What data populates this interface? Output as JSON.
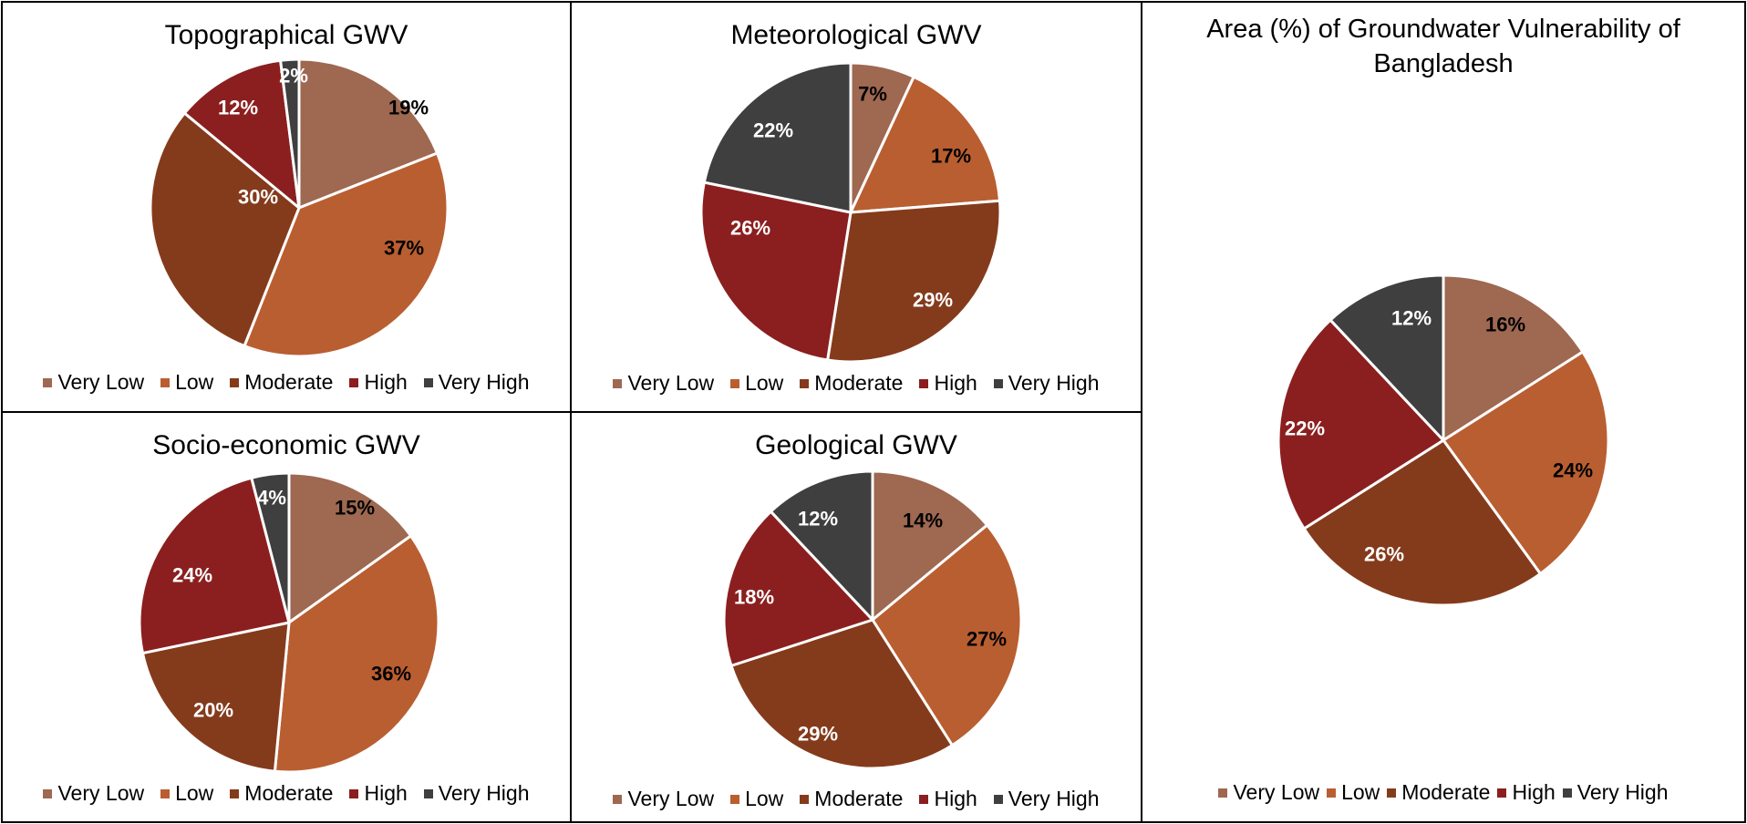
{
  "categories": [
    "Very Low",
    "Low",
    "Moderate",
    "High",
    "Very High"
  ],
  "colors": {
    "Very Low": "#9E6851",
    "Low": "#B95E31",
    "Moderate": "#843B1C",
    "High": "#8B1F1F",
    "Very High": "#3F3F3F"
  },
  "panels": {
    "topographical": {
      "title": "Topographical GWV",
      "labels": [
        "19%",
        "37%",
        "30%",
        "12%",
        "2%"
      ]
    },
    "meteorological": {
      "title": "Meteorological GWV",
      "labels": [
        "7%",
        "17%",
        "29%",
        "26%",
        "22%"
      ]
    },
    "socioeconomic": {
      "title": "Socio-economic GWV",
      "labels": [
        "15%",
        "36%",
        "20%",
        "24%",
        "4%"
      ]
    },
    "geological": {
      "title": "Geological GWV",
      "labels": [
        "14%",
        "27%",
        "29%",
        "18%",
        "12%"
      ]
    },
    "overall": {
      "title": "Area (%) of Groundwater Vulnerability of Bangladesh",
      "labels": [
        "16%",
        "24%",
        "26%",
        "22%",
        "12%"
      ]
    }
  },
  "legend": [
    "Very Low",
    "Low",
    "Moderate",
    "High",
    "Very High"
  ],
  "chart_data": [
    {
      "type": "pie",
      "title": "Topographical GWV",
      "categories": [
        "Very Low",
        "Low",
        "Moderate",
        "High",
        "Very High"
      ],
      "values": [
        19,
        37,
        30,
        12,
        2
      ],
      "unit": "%",
      "legend_position": "bottom",
      "start_angle": "12 o'clock, clockwise"
    },
    {
      "type": "pie",
      "title": "Meteorological GWV",
      "categories": [
        "Very Low",
        "Low",
        "Moderate",
        "High",
        "Very High"
      ],
      "values": [
        7,
        17,
        29,
        26,
        22
      ],
      "unit": "%",
      "legend_position": "bottom",
      "start_angle": "12 o'clock, clockwise"
    },
    {
      "type": "pie",
      "title": "Socio-economic GWV",
      "categories": [
        "Very Low",
        "Low",
        "Moderate",
        "High",
        "Very High"
      ],
      "values": [
        15,
        36,
        20,
        24,
        4
      ],
      "unit": "%",
      "legend_position": "bottom",
      "start_angle": "12 o'clock, clockwise"
    },
    {
      "type": "pie",
      "title": "Geological GWV",
      "categories": [
        "Very Low",
        "Low",
        "Moderate",
        "High",
        "Very High"
      ],
      "values": [
        14,
        27,
        29,
        18,
        12
      ],
      "unit": "%",
      "legend_position": "bottom",
      "start_angle": "12 o'clock, clockwise"
    },
    {
      "type": "pie",
      "title": "Area (%) of Groundwater Vulnerability of Bangladesh",
      "categories": [
        "Very Low",
        "Low",
        "Moderate",
        "High",
        "Very High"
      ],
      "values": [
        16,
        24,
        26,
        22,
        12
      ],
      "unit": "%",
      "legend_position": "bottom",
      "start_angle": "12 o'clock, clockwise"
    }
  ]
}
